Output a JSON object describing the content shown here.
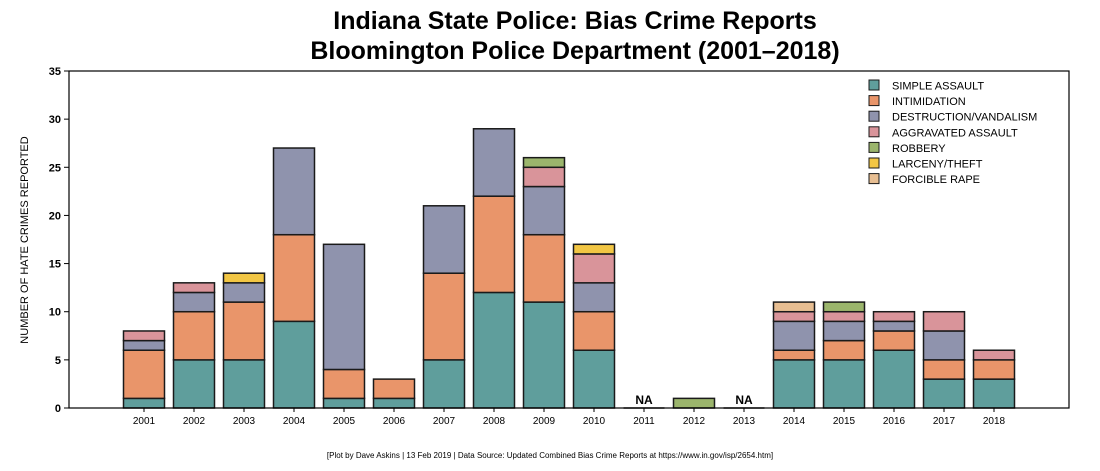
{
  "chart_data": {
    "type": "bar",
    "stacked": true,
    "title": "Indiana State Police: Bias Crime Reports",
    "subtitle": "Bloomington Police Department (2001–2018)",
    "xlabel": "",
    "ylabel": "NUMBER OF HATE CRIMES REPORTED",
    "ylim": [
      0,
      35
    ],
    "yticks": [
      0,
      5,
      10,
      15,
      20,
      25,
      30,
      35
    ],
    "grid": false,
    "legend_position": "top-right",
    "categories": [
      "2001",
      "2002",
      "2003",
      "2004",
      "2005",
      "2006",
      "2007",
      "2008",
      "2009",
      "2010",
      "2011",
      "2012",
      "2013",
      "2014",
      "2015",
      "2016",
      "2017",
      "2018"
    ],
    "na_label": "NA",
    "na_categories": [
      "2011",
      "2013"
    ],
    "series": [
      {
        "name": "SIMPLE ASSAULT",
        "color": "#5f9e9c",
        "values": [
          1,
          5,
          5,
          9,
          1,
          1,
          5,
          12,
          11,
          6,
          0,
          0,
          0,
          5,
          5,
          6,
          3,
          3
        ]
      },
      {
        "name": "INTIMIDATION",
        "color": "#e9956a",
        "values": [
          5,
          5,
          6,
          9,
          3,
          2,
          9,
          10,
          7,
          4,
          0,
          0,
          0,
          1,
          2,
          2,
          2,
          2
        ]
      },
      {
        "name": "DESTRUCTION/VANDALISM",
        "color": "#8f93ad",
        "values": [
          1,
          2,
          2,
          9,
          13,
          0,
          7,
          7,
          5,
          3,
          0,
          0,
          0,
          3,
          2,
          1,
          3,
          0
        ]
      },
      {
        "name": "AGGRAVATED ASSAULT",
        "color": "#d9949a",
        "values": [
          1,
          1,
          0,
          0,
          0,
          0,
          0,
          0,
          2,
          3,
          0,
          0,
          0,
          1,
          1,
          1,
          2,
          1
        ]
      },
      {
        "name": "ROBBERY",
        "color": "#9bb56c",
        "values": [
          0,
          0,
          0,
          0,
          0,
          0,
          0,
          0,
          1,
          0,
          0,
          1,
          0,
          0,
          1,
          0,
          0,
          0
        ]
      },
      {
        "name": "LARCENY/THEFT",
        "color": "#f2c644",
        "values": [
          0,
          0,
          1,
          0,
          0,
          0,
          0,
          0,
          0,
          1,
          0,
          0,
          0,
          0,
          0,
          0,
          0,
          0
        ]
      },
      {
        "name": "FORCIBLE RAPE",
        "color": "#e7be92",
        "values": [
          0,
          0,
          0,
          0,
          0,
          0,
          0,
          0,
          0,
          0,
          0,
          0,
          0,
          1,
          0,
          0,
          0,
          0
        ]
      }
    ]
  },
  "footer": "[Plot by Dave Askins | 13 Feb 2019 | Data Source: Updated Combined Bias Crime Reports at https://www.in.gov/isp/2654.htm]"
}
